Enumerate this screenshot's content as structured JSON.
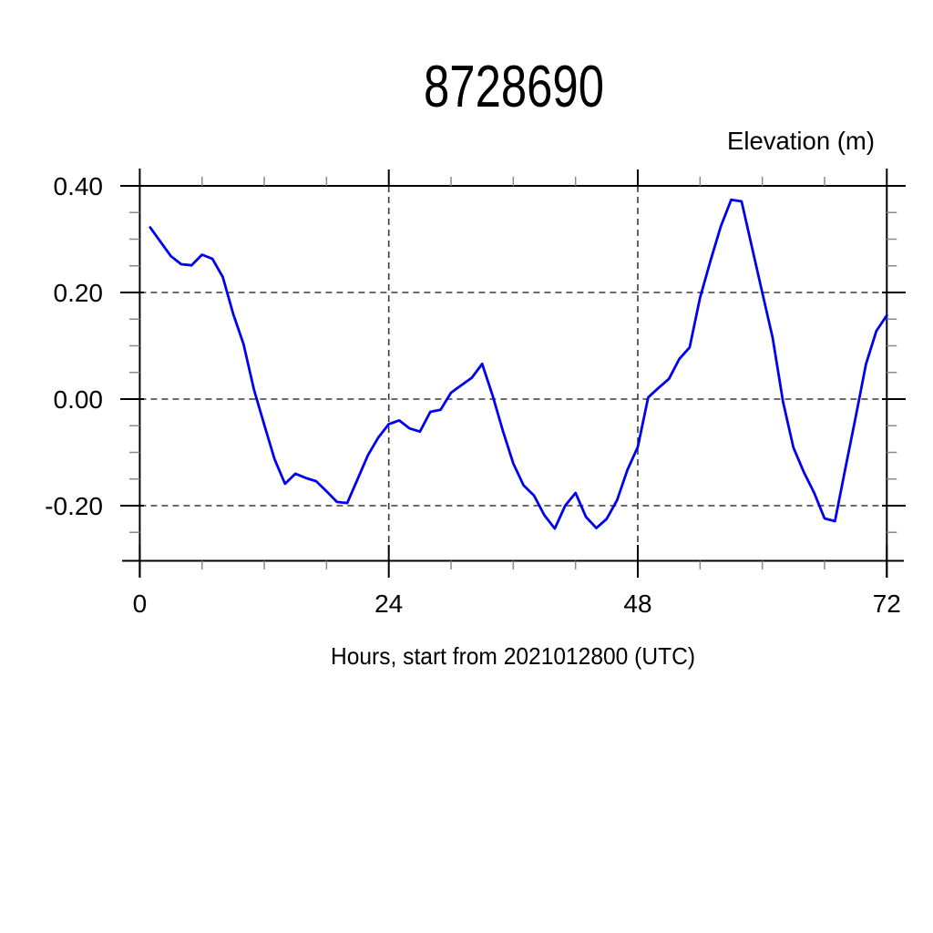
{
  "background": "#ffffff",
  "chart_data": {
    "type": "line",
    "title": "8728690",
    "ylabel": "Elevation (m)",
    "xlabel": "Hours, start from 2021012800 (UTC)",
    "xlim": [
      0,
      72
    ],
    "ylim": [
      -0.3,
      0.4
    ],
    "grid": {
      "style": "dashed",
      "x_lines": [
        24,
        48
      ],
      "y_lines": [
        0.4,
        0.2,
        0.0,
        -0.2
      ]
    },
    "x_major_ticks": [
      0,
      24,
      48,
      72
    ],
    "x_major_labels": [
      "0",
      "24",
      "48",
      "72"
    ],
    "x_minor_step": 6,
    "y_major_ticks": [
      0.4,
      0.2,
      0.0,
      -0.2
    ],
    "y_major_labels": [
      "0.40",
      "0.20",
      "0.00",
      "-0.20"
    ],
    "y_minor_step": 0.05,
    "line_color": "#0000ee",
    "axis_color": "#000000",
    "minor_tick_color": "#8a8a8a",
    "grid_color": "#3b3b3b",
    "series": [
      {
        "name": "elevation",
        "color": "#0000ee",
        "x": [
          1,
          2,
          3,
          4,
          5,
          6,
          7,
          8,
          9,
          10,
          11,
          12,
          13,
          14,
          15,
          16,
          17,
          18,
          19,
          20,
          21,
          22,
          23,
          24,
          25,
          26,
          27,
          28,
          29,
          30,
          31,
          32,
          33,
          34,
          35,
          36,
          37,
          38,
          39,
          40,
          41,
          42,
          43,
          44,
          45,
          46,
          47,
          48,
          49,
          50,
          51,
          52,
          53,
          54,
          55,
          56,
          57,
          58,
          59,
          60,
          61,
          62,
          63,
          64,
          65,
          66,
          67,
          68,
          69,
          70,
          71,
          72
        ],
        "y": [
          0.322,
          0.295,
          0.268,
          0.253,
          0.251,
          0.271,
          0.263,
          0.229,
          0.16,
          0.103,
          0.018,
          -0.048,
          -0.113,
          -0.159,
          -0.14,
          -0.148,
          -0.154,
          -0.173,
          -0.193,
          -0.195,
          -0.15,
          -0.105,
          -0.072,
          -0.047,
          -0.04,
          -0.055,
          -0.061,
          -0.024,
          -0.02,
          0.012,
          0.026,
          0.04,
          0.066,
          0.007,
          -0.06,
          -0.121,
          -0.162,
          -0.181,
          -0.218,
          -0.243,
          -0.2,
          -0.176,
          -0.221,
          -0.242,
          -0.225,
          -0.19,
          -0.133,
          -0.09,
          0.003,
          0.021,
          0.038,
          0.075,
          0.097,
          0.19,
          0.259,
          0.324,
          0.374,
          0.371,
          0.285,
          0.2,
          0.115,
          -0.005,
          -0.091,
          -0.137,
          -0.176,
          -0.224,
          -0.229,
          -0.131,
          -0.034,
          0.066,
          0.128,
          0.157
        ]
      }
    ]
  }
}
